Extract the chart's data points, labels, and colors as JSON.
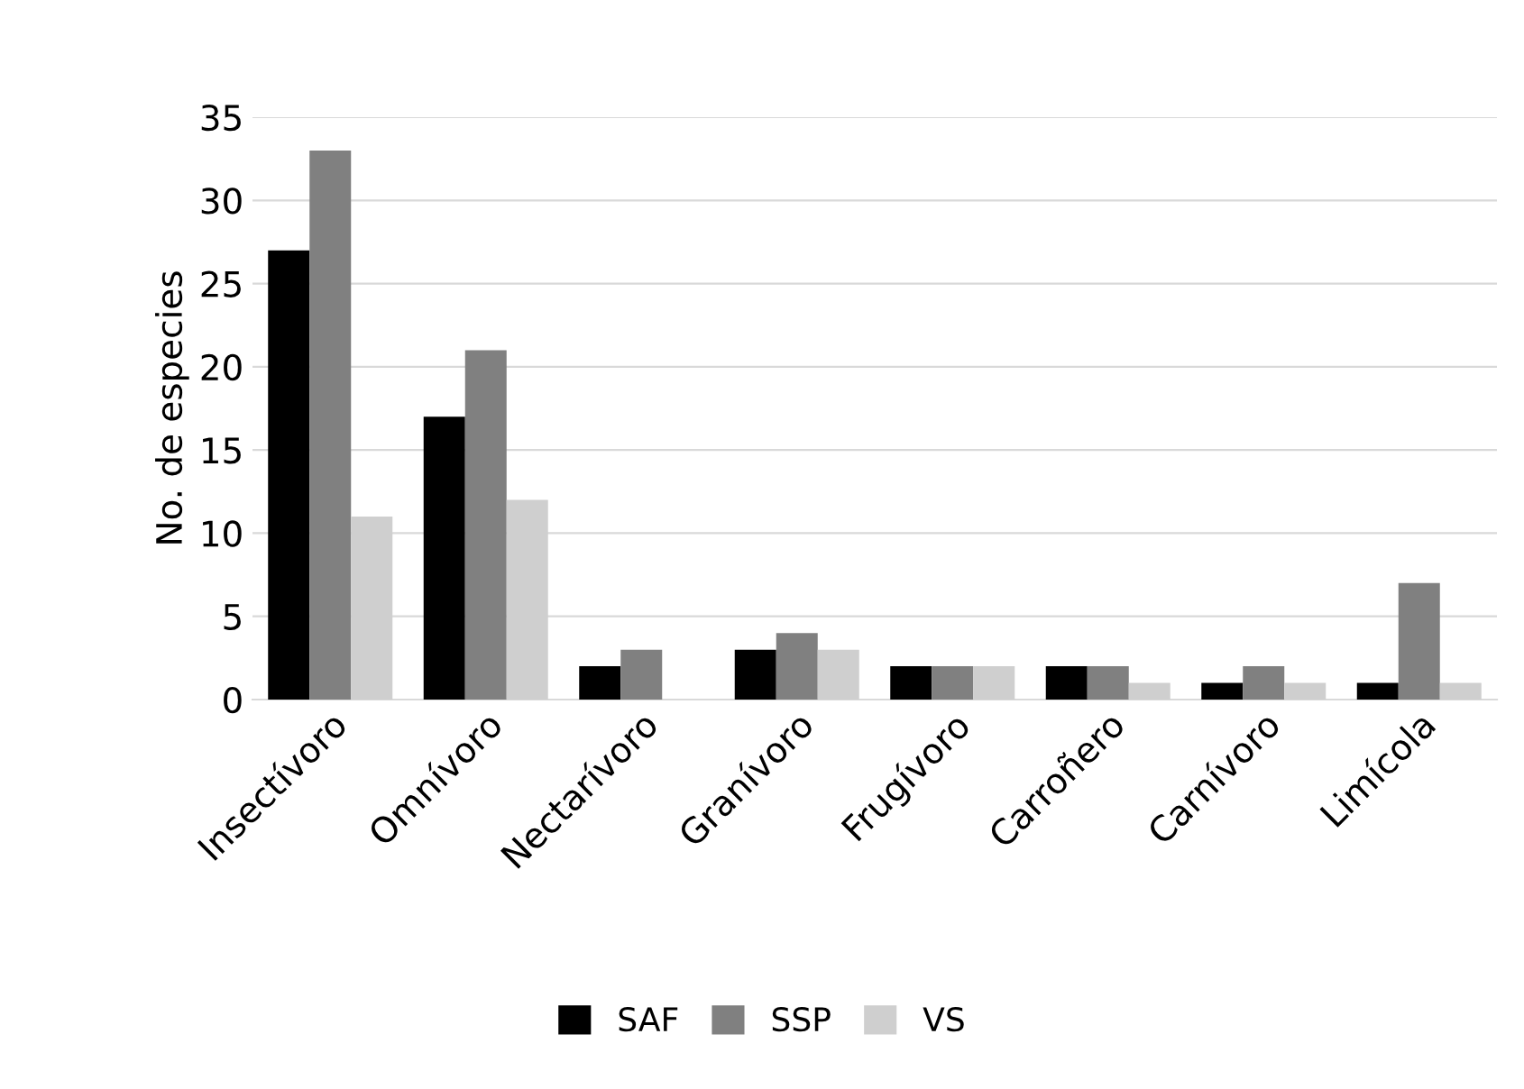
{
  "chart_data": {
    "type": "bar",
    "ylabel": "No. de especies",
    "categories": [
      "Insectívoro",
      "Omnívoro",
      "Nectarívoro",
      "Granívoro",
      "Frugívoro",
      "Carroñero",
      "Carnívoro",
      "Limícola"
    ],
    "series": [
      {
        "name": "SAF",
        "color": "#000000",
        "values": [
          27,
          17,
          2,
          3,
          2,
          2,
          1,
          1
        ]
      },
      {
        "name": "SSP",
        "color": "#808080",
        "values": [
          33,
          21,
          3,
          4,
          2,
          2,
          2,
          7
        ]
      },
      {
        "name": "VS",
        "color": "#cfcfcf",
        "values": [
          11,
          12,
          0,
          3,
          2,
          1,
          1,
          1
        ]
      }
    ],
    "ylim": [
      0,
      35
    ],
    "yticks": [
      0,
      5,
      10,
      15,
      20,
      25,
      30,
      35
    ],
    "grid": "y",
    "legend": "bottom"
  }
}
